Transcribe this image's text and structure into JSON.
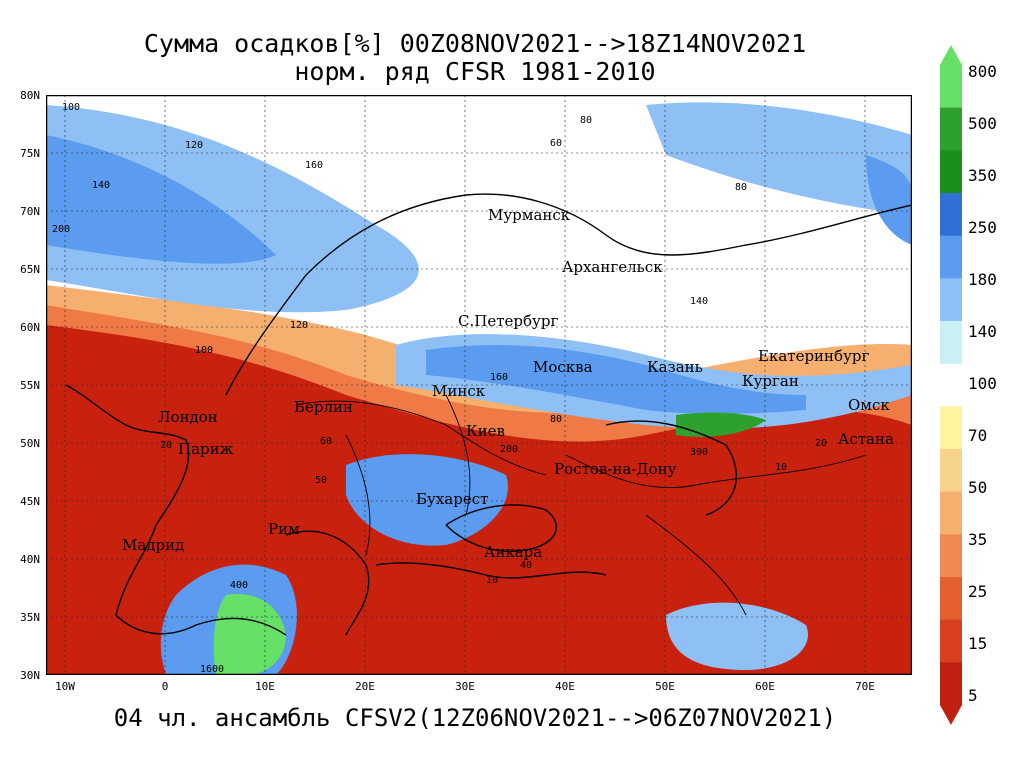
{
  "title": {
    "line1": "Сумма осадков[%] 00Z08NOV2021-->18Z14NOV2021",
    "line2": "норм. ряд CFSR 1981-2010"
  },
  "footer": "04 чл. ансамбль CFSV2(12Z06NOV2021-->06Z07NOV2021)",
  "axes": {
    "y_labels": [
      "80N",
      "75N",
      "70N",
      "65N",
      "60N",
      "55N",
      "50N",
      "45N",
      "40N",
      "35N",
      "30N"
    ],
    "x_labels": [
      "10W",
      "0",
      "10E",
      "20E",
      "30E",
      "40E",
      "50E",
      "60E",
      "70E"
    ],
    "lat_range": [
      30,
      80
    ],
    "lon_range": [
      -12,
      75
    ]
  },
  "colorbar": {
    "labels": [
      "800",
      "500",
      "350",
      "250",
      "180",
      "140",
      "100",
      "70",
      "50",
      "35",
      "25",
      "15",
      "5"
    ],
    "colors": [
      "#66e066",
      "#2ea02e",
      "#1a8f1a",
      "#2f6fd6",
      "#5b9bf0",
      "#8ec0f5",
      "#c8f0f5",
      "#ffffff",
      "#fff3a0",
      "#f8d48a",
      "#f5b070",
      "#ef8a55",
      "#e46030",
      "#d8401e",
      "#c02010"
    ]
  },
  "cities": [
    {
      "name": "Мурманск"
    },
    {
      "name": "Архангельск"
    },
    {
      "name": "С.Петербург"
    },
    {
      "name": "Москва"
    },
    {
      "name": "Казань"
    },
    {
      "name": "Екатеринбург"
    },
    {
      "name": "Курган"
    },
    {
      "name": "Омск"
    },
    {
      "name": "Астана"
    },
    {
      "name": "Минск"
    },
    {
      "name": "Киев"
    },
    {
      "name": "Берлин"
    },
    {
      "name": "Лондон"
    },
    {
      "name": "Париж"
    },
    {
      "name": "Мадрид"
    },
    {
      "name": "Рим"
    },
    {
      "name": "Бухарест"
    },
    {
      "name": "Анкара"
    },
    {
      "name": "Ростов-на-Дону"
    }
  ],
  "contour_labels": [
    "100",
    "120",
    "140",
    "160",
    "200",
    "60",
    "80",
    "80",
    "20",
    "10",
    "40",
    "300",
    "400",
    "1600",
    "200",
    "160",
    "140",
    "120",
    "100",
    "80",
    "60",
    "50",
    "20",
    "10"
  ]
}
